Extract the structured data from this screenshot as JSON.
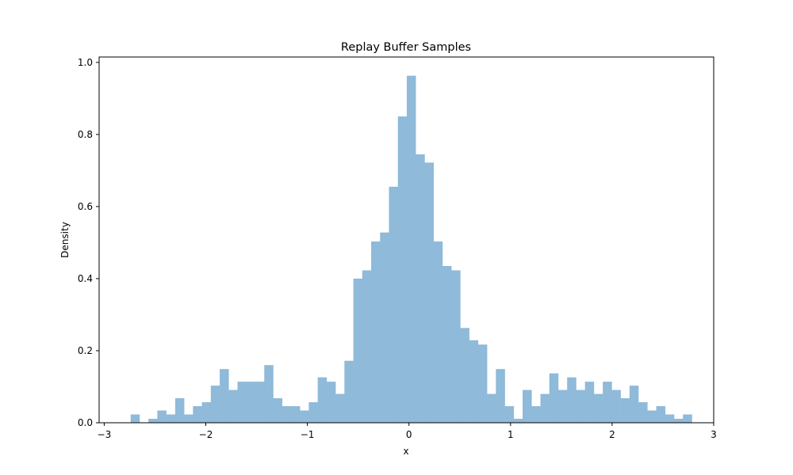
{
  "chart_data": {
    "type": "bar",
    "title": "Replay Buffer Samples",
    "xlabel": "x",
    "ylabel": "Density",
    "xlim": [
      -3.05,
      3.0
    ],
    "ylim": [
      0,
      1.015
    ],
    "xticks": [
      -3,
      -2,
      -1,
      0,
      1,
      2,
      3
    ],
    "xtick_labels": [
      "−3",
      "−2",
      "−1",
      "0",
      "1",
      "2",
      "3"
    ],
    "yticks": [
      0.0,
      0.2,
      0.4,
      0.6,
      0.8,
      1.0
    ],
    "ytick_labels": [
      "0.0",
      "0.2",
      "0.4",
      "0.6",
      "0.8",
      "1.0"
    ],
    "grid": false,
    "bar_color": "#8fbad9",
    "bin_start": -2.74,
    "bin_width": 0.0877,
    "values": [
      0.023,
      0.0,
      0.011,
      0.034,
      0.023,
      0.068,
      0.023,
      0.046,
      0.057,
      0.103,
      0.149,
      0.091,
      0.114,
      0.114,
      0.114,
      0.16,
      0.068,
      0.046,
      0.046,
      0.034,
      0.057,
      0.126,
      0.114,
      0.08,
      0.172,
      0.4,
      0.423,
      0.503,
      0.528,
      0.655,
      0.85,
      0.963,
      0.745,
      0.722,
      0.503,
      0.435,
      0.423,
      0.263,
      0.229,
      0.217,
      0.08,
      0.149,
      0.046,
      0.011,
      0.091,
      0.046,
      0.08,
      0.137,
      0.091,
      0.126,
      0.091,
      0.114,
      0.08,
      0.114,
      0.091,
      0.068,
      0.103,
      0.057,
      0.034,
      0.046,
      0.023,
      0.011,
      0.023
    ]
  }
}
